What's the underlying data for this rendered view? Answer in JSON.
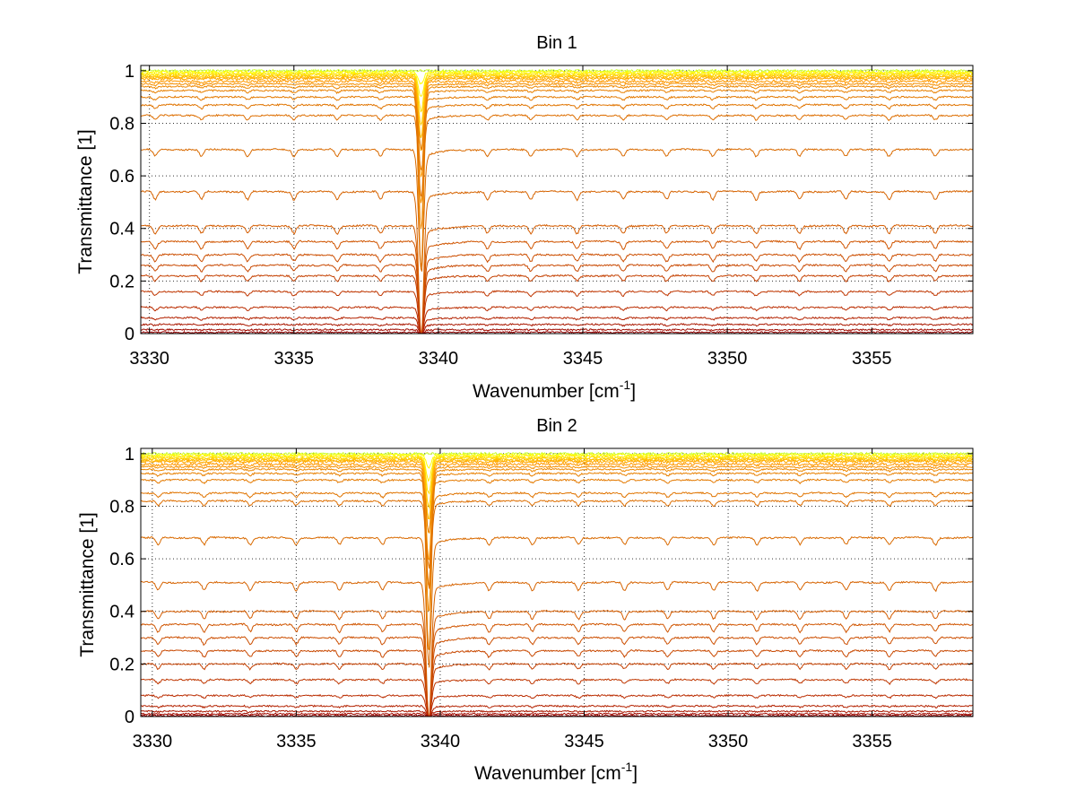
{
  "chart_data": [
    {
      "type": "line",
      "title": "Bin 1",
      "xlabel": "Wavenumber [cm",
      "xlabel_sup": "-1",
      "xlabel_tail": "]",
      "ylabel": "Transmittance [1]",
      "xlim": [
        3329.7,
        3358.5
      ],
      "ylim": [
        0,
        1.02
      ],
      "xticks": [
        3330,
        3335,
        3340,
        3345,
        3350,
        3355
      ],
      "xtick_labels": [
        "3330",
        "3335",
        "3340",
        "3345",
        "3350",
        "3355"
      ],
      "yticks": [
        0,
        0.2,
        0.4,
        0.6,
        0.8,
        1
      ],
      "ytick_labels": [
        "0",
        "0.2",
        "0.4",
        "0.6",
        "0.8",
        "1"
      ],
      "grid": true,
      "main_absorption_line": 3339.4,
      "secondary_lines": [
        3330.2,
        3331.8,
        3333.4,
        3335.0,
        3336.5,
        3338.0,
        3341.7,
        3343.2,
        3344.8,
        3346.4,
        3347.9,
        3349.5,
        3351.0,
        3352.5,
        3354.1,
        3355.6,
        3357.2
      ],
      "series_baselines": [
        1.0,
        0.995,
        0.99,
        0.985,
        0.98,
        0.975,
        0.97,
        0.96,
        0.95,
        0.94,
        0.925,
        0.9,
        0.87,
        0.83,
        0.7,
        0.54,
        0.41,
        0.35,
        0.3,
        0.26,
        0.22,
        0.16,
        0.1,
        0.06,
        0.035,
        0.015,
        0.005
      ],
      "series_colors": [
        "#ccff33",
        "#ffff00",
        "#ffee00",
        "#ffdd00",
        "#ffcc00",
        "#ffbb00",
        "#ffaa00",
        "#ff9900",
        "#f59000",
        "#ee8800",
        "#e88000",
        "#e47a00",
        "#e07400",
        "#dd6e00",
        "#d96a00",
        "#d66300",
        "#d45c00",
        "#d05500",
        "#cc4e00",
        "#c84800",
        "#c44000",
        "#bf3600",
        "#ba2c00",
        "#b32200",
        "#aa1800",
        "#a00c00",
        "#950000"
      ]
    },
    {
      "type": "line",
      "title": "Bin 2",
      "xlabel": "Wavenumber [cm",
      "xlabel_sup": "-1",
      "xlabel_tail": "]",
      "ylabel": "Transmittance [1]",
      "xlim": [
        3329.6,
        3358.5
      ],
      "ylim": [
        0,
        1.02
      ],
      "xticks": [
        3330,
        3335,
        3340,
        3345,
        3350,
        3355
      ],
      "xtick_labels": [
        "3330",
        "3335",
        "3340",
        "3345",
        "3350",
        "3355"
      ],
      "yticks": [
        0,
        0.2,
        0.4,
        0.6,
        0.8,
        1
      ],
      "ytick_labels": [
        "0",
        "0.2",
        "0.4",
        "0.6",
        "0.8",
        "1"
      ],
      "grid": true,
      "main_absorption_line": 3339.6,
      "secondary_lines": [
        3330.2,
        3331.8,
        3333.4,
        3335.0,
        3336.5,
        3338.0,
        3341.7,
        3343.2,
        3344.8,
        3346.4,
        3347.9,
        3349.5,
        3351.0,
        3352.5,
        3354.1,
        3355.6,
        3357.2
      ],
      "series_baselines": [
        1.0,
        0.995,
        0.99,
        0.985,
        0.98,
        0.975,
        0.97,
        0.96,
        0.95,
        0.94,
        0.925,
        0.9,
        0.85,
        0.82,
        0.68,
        0.51,
        0.4,
        0.35,
        0.3,
        0.25,
        0.2,
        0.14,
        0.08,
        0.04,
        0.02,
        0.01,
        0.003
      ],
      "series_colors": [
        "#ccff33",
        "#ffff00",
        "#ffee00",
        "#ffdd00",
        "#ffcc00",
        "#ffbb00",
        "#ffaa00",
        "#ff9900",
        "#f59000",
        "#ee8800",
        "#e88000",
        "#e47a00",
        "#e07400",
        "#dd6e00",
        "#d96a00",
        "#d66300",
        "#d45c00",
        "#d05500",
        "#cc4e00",
        "#c84800",
        "#c44000",
        "#bf3600",
        "#ba2c00",
        "#b32200",
        "#aa1800",
        "#a00c00",
        "#950000"
      ]
    }
  ]
}
